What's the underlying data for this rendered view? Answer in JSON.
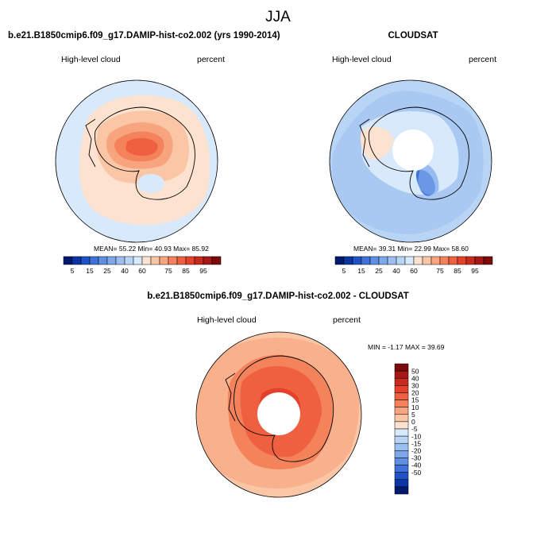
{
  "page_title": "JJA",
  "colors": {
    "ocean_light": "#d6ebfb",
    "land_line": "#000000",
    "warm_scale": [
      "#fde3cf",
      "#fbc6a6",
      "#f8a47e",
      "#f4835b",
      "#ef6041",
      "#e4402b",
      "#c92a1e",
      "#a51813",
      "#7a0d0c"
    ],
    "cool_scale": [
      "#d8e9fb",
      "#b9d5f6",
      "#9cbff1",
      "#7fa8eb",
      "#5f8fe3",
      "#3f72d8",
      "#1f52c7",
      "#0c35a5",
      "#021a6e"
    ]
  },
  "chart_data": [
    {
      "type": "heatmap",
      "id": "panel-model",
      "title": "b.e21.B1850cmip6.f09_g17.DAMIP-hist-co2.002 (yrs 1990-2014)",
      "variable": "High-level cloud",
      "units": "percent",
      "stats": "MEAN=  55.22  Min=  40.93  Max=  85.92",
      "stats_values": {
        "mean": 55.22,
        "min": 40.93,
        "max": 85.92
      },
      "colorbar_labels": [
        "5",
        "15",
        "25",
        "40",
        "60",
        "75",
        "85",
        "95"
      ],
      "colorbar_levels": [
        0,
        5,
        10,
        15,
        20,
        25,
        30,
        40,
        50,
        60,
        65,
        70,
        75,
        80,
        85,
        90,
        95,
        100
      ]
    },
    {
      "type": "heatmap",
      "id": "panel-cloudsat",
      "title": "CLOUDSAT",
      "variable": "High-level cloud",
      "units": "percent",
      "stats": "MEAN=  39.31  Min=  22.99  Max=  58.60",
      "stats_values": {
        "mean": 39.31,
        "min": 22.99,
        "max": 58.6
      },
      "colorbar_labels": [
        "5",
        "15",
        "25",
        "40",
        "60",
        "75",
        "85",
        "95"
      ],
      "colorbar_levels": [
        0,
        5,
        10,
        15,
        20,
        25,
        30,
        40,
        50,
        60,
        65,
        70,
        75,
        80,
        85,
        90,
        95,
        100
      ]
    },
    {
      "type": "heatmap",
      "id": "panel-difference",
      "title": "b.e21.B1850cmip6.f09_g17.DAMIP-hist-co2.002 - CLOUDSAT",
      "variable": "High-level cloud",
      "units": "percent",
      "stats": "MIN =  -1.17  MAX =  39.69",
      "stats_values": {
        "min": -1.17,
        "max": 39.69
      },
      "colorbar_labels": [
        "50",
        "40",
        "30",
        "20",
        "15",
        "10",
        "5",
        "0",
        "-5",
        "-10",
        "-15",
        "-20",
        "-30",
        "-40",
        "-50"
      ],
      "colorbar_levels": [
        50,
        40,
        30,
        20,
        15,
        10,
        5,
        0,
        -5,
        -10,
        -15,
        -20,
        -30,
        -40,
        -50
      ]
    }
  ]
}
